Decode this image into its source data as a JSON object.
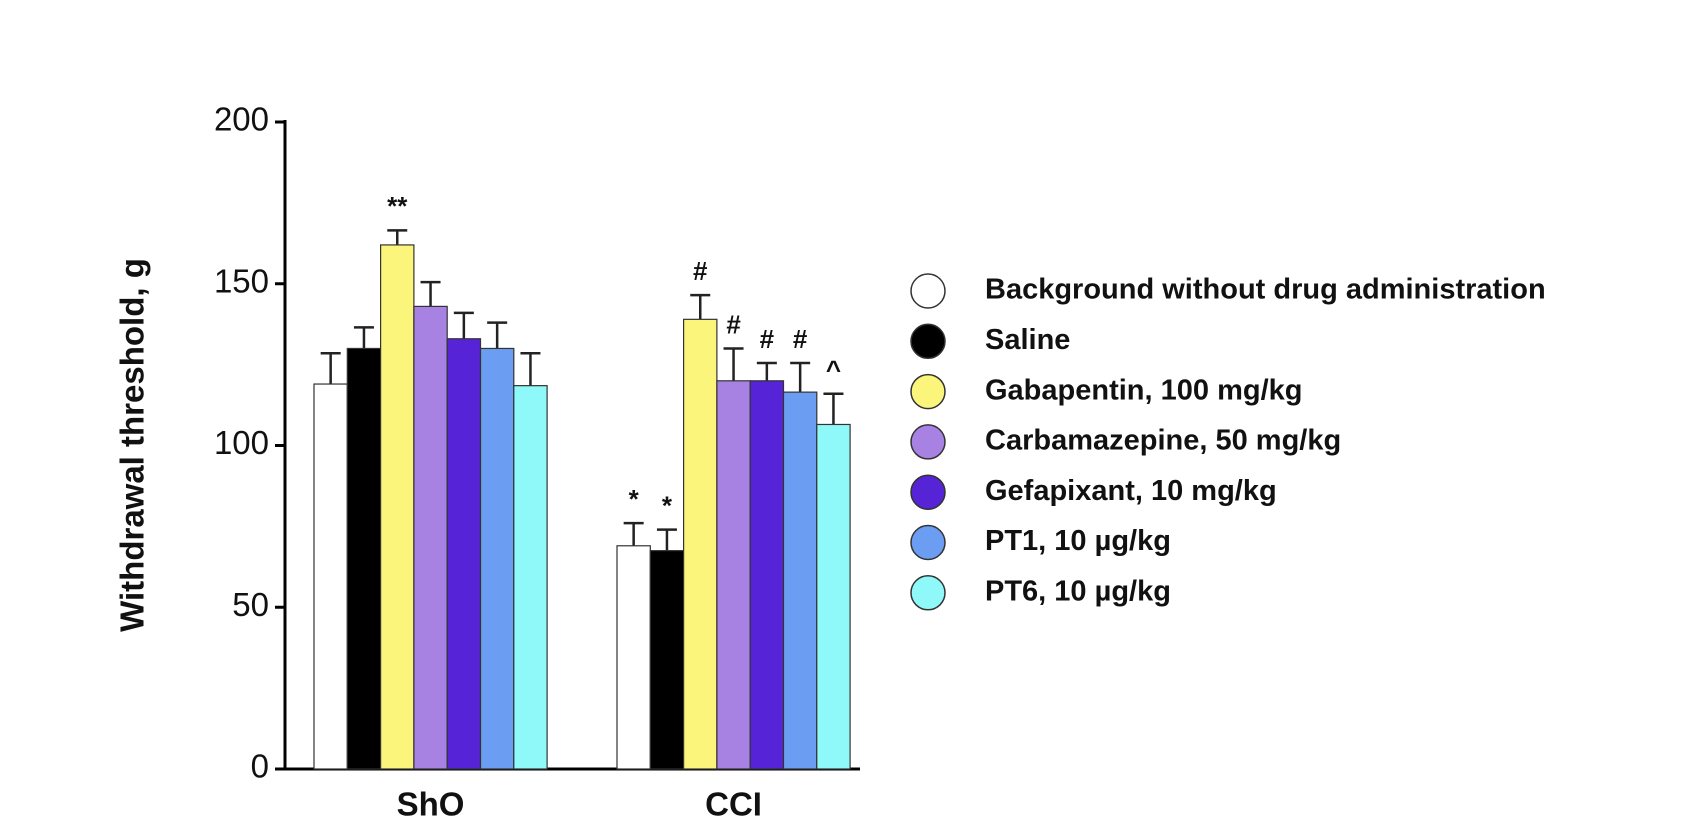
{
  "chart_data": {
    "type": "bar",
    "y_label": "Withdrawal threshold, g",
    "categories": [
      "ShO",
      "CCI"
    ],
    "ylim": [
      0,
      200
    ],
    "yticks": [
      0,
      50,
      100,
      150,
      200
    ],
    "series": [
      {
        "name": "Background without drug administration",
        "color": "#ffffff",
        "values": [
          119,
          69
        ],
        "errors": [
          9.5,
          7
        ],
        "annotations": [
          null,
          "*"
        ]
      },
      {
        "name": "Saline",
        "color": "#000000",
        "values": [
          130,
          67.5
        ],
        "errors": [
          6.5,
          6.5
        ],
        "annotations": [
          null,
          "*"
        ]
      },
      {
        "name": "Gabapentin, 100 mg/kg",
        "color": "#fbf57c",
        "values": [
          162,
          139
        ],
        "errors": [
          4.5,
          7.5
        ],
        "annotations": [
          "**",
          "#"
        ]
      },
      {
        "name": "Carbamazepine, 50 mg/kg",
        "color": "#a882e2",
        "values": [
          143,
          120
        ],
        "errors": [
          7.5,
          10
        ],
        "annotations": [
          null,
          "#"
        ]
      },
      {
        "name": "Gefapixant, 10 mg/kg",
        "color": "#5623d6",
        "values": [
          133,
          120
        ],
        "errors": [
          8,
          5.5
        ],
        "annotations": [
          null,
          "#"
        ]
      },
      {
        "name": "PT1, 10 µg/kg",
        "color": "#6b9ef2",
        "values": [
          130,
          116.5
        ],
        "errors": [
          8,
          9
        ],
        "annotations": [
          null,
          "#"
        ]
      },
      {
        "name": "PT6, 10 µg/kg",
        "color": "#8ff9f9",
        "values": [
          118.5,
          106.5
        ],
        "errors": [
          10,
          9.5
        ],
        "annotations": [
          null,
          "^"
        ]
      }
    ]
  }
}
